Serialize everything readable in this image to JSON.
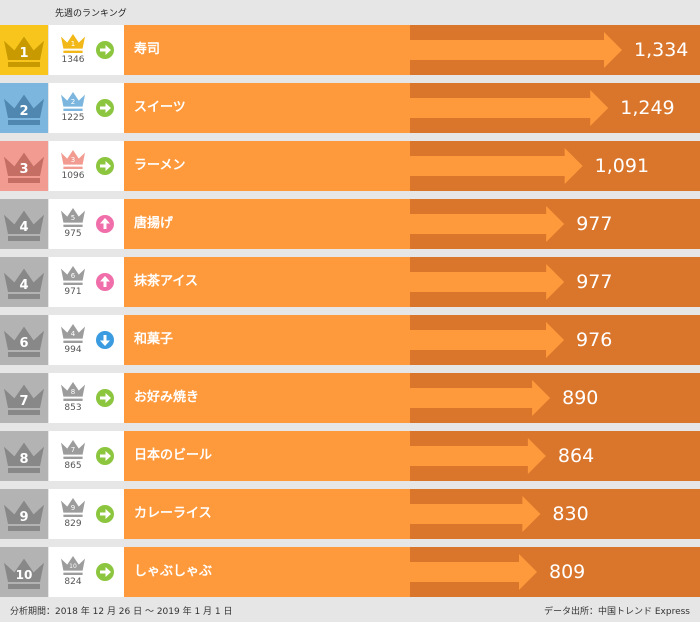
{
  "header_label": "先週のランキング",
  "footer": {
    "period": "分析期間：2018 年 12 月 26 日 ～ 2019 年 1 月 1 日",
    "source": "データ出所：中国トレンド Express"
  },
  "colors": {
    "bar": "#ff9a3c",
    "bar_dark": "#d9762c",
    "arrow": "#ff9a3c",
    "rank_gold": "#f7c51b",
    "rank_blue": "#7cb6df",
    "rank_red": "#f29b90",
    "rank_gray": "#b3b3b3",
    "trend_same": "#8cc63f",
    "trend_up": "#f06ea9",
    "trend_down": "#3a9be0"
  },
  "chart_data": {
    "type": "bar",
    "title": "",
    "xlim": [
      0,
      1400
    ],
    "items": [
      {
        "rank": "1",
        "name": "寿司",
        "value": 1334,
        "value_label": "1,334",
        "prev_rank": "1",
        "prev_value": "1346",
        "trend": "same",
        "rank_color": "gold"
      },
      {
        "rank": "2",
        "name": "スイーツ",
        "value": 1249,
        "value_label": "1,249",
        "prev_rank": "2",
        "prev_value": "1225",
        "trend": "same",
        "rank_color": "blue"
      },
      {
        "rank": "3",
        "name": "ラーメン",
        "value": 1091,
        "value_label": "1,091",
        "prev_rank": "3",
        "prev_value": "1096",
        "trend": "same",
        "rank_color": "red"
      },
      {
        "rank": "4",
        "name": "唐揚げ",
        "value": 977,
        "value_label": "977",
        "prev_rank": "5",
        "prev_value": "975",
        "trend": "up",
        "rank_color": "gray"
      },
      {
        "rank": "4",
        "name": "抹茶アイス",
        "value": 977,
        "value_label": "977",
        "prev_rank": "6",
        "prev_value": "971",
        "trend": "up",
        "rank_color": "gray"
      },
      {
        "rank": "6",
        "name": "和菓子",
        "value": 976,
        "value_label": "976",
        "prev_rank": "4",
        "prev_value": "994",
        "trend": "down",
        "rank_color": "gray"
      },
      {
        "rank": "7",
        "name": "お好み焼き",
        "value": 890,
        "value_label": "890",
        "prev_rank": "8",
        "prev_value": "853",
        "trend": "same",
        "rank_color": "gray"
      },
      {
        "rank": "8",
        "name": "日本のビール",
        "value": 864,
        "value_label": "864",
        "prev_rank": "7",
        "prev_value": "865",
        "trend": "same",
        "rank_color": "gray"
      },
      {
        "rank": "9",
        "name": "カレーライス",
        "value": 830,
        "value_label": "830",
        "prev_rank": "9",
        "prev_value": "829",
        "trend": "same",
        "rank_color": "gray"
      },
      {
        "rank": "10",
        "name": "しゃぶしゃぶ",
        "value": 809,
        "value_label": "809",
        "prev_rank": "10",
        "prev_value": "824",
        "trend": "same",
        "rank_color": "gray"
      }
    ]
  }
}
